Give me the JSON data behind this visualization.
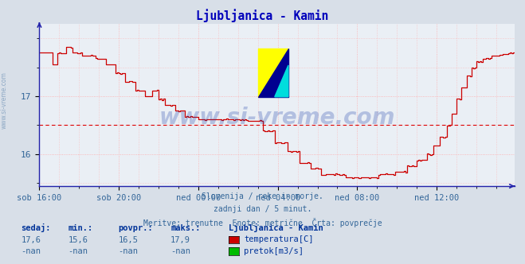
{
  "title": "Ljubljanica - Kamin",
  "bg_color": "#d8dfe8",
  "plot_bg_color": "#eaeff5",
  "grid_color": "#ffaaaa",
  "grid_style": ":",
  "axis_color": "#2222aa",
  "line_color": "#cc0000",
  "avg_line_color": "#dd0000",
  "avg_line_style": ":",
  "avg_value": 16.5,
  "y_min": 15.45,
  "y_max": 18.25,
  "y_ticks": [
    16,
    17
  ],
  "tick_color": "#336699",
  "title_color": "#0000bb",
  "subtitle_lines": [
    "Slovenija / reke in morje.",
    "zadnji dan / 5 minut.",
    "Meritve: trenutne  Enote: metrične  Črta: povprečje"
  ],
  "info_label_color": "#003399",
  "info_value_color": "#336699",
  "sedaj": "17,6",
  "min_val": "15,6",
  "povpr": "16,5",
  "maks": "17,9",
  "sedaj2": "-nan",
  "min_val2": "-nan",
  "povpr2": "-nan",
  "maks2": "-nan",
  "legend_title": "Ljubljanica - Kamin",
  "legend_color1": "#cc0000",
  "legend_label1": "temperatura[C]",
  "legend_color2": "#00bb00",
  "legend_label2": "pretok[m3/s]",
  "watermark": "www.si-vreme.com",
  "watermark_color": "#2244aa",
  "watermark_alpha": 0.28,
  "x_tick_labels": [
    "sob 16:00",
    "sob 20:00",
    "ned 00:00",
    "ned 04:00",
    "ned 08:00",
    "ned 12:00"
  ],
  "x_tick_positions": [
    0,
    48,
    96,
    144,
    192,
    240
  ],
  "total_points": 288
}
